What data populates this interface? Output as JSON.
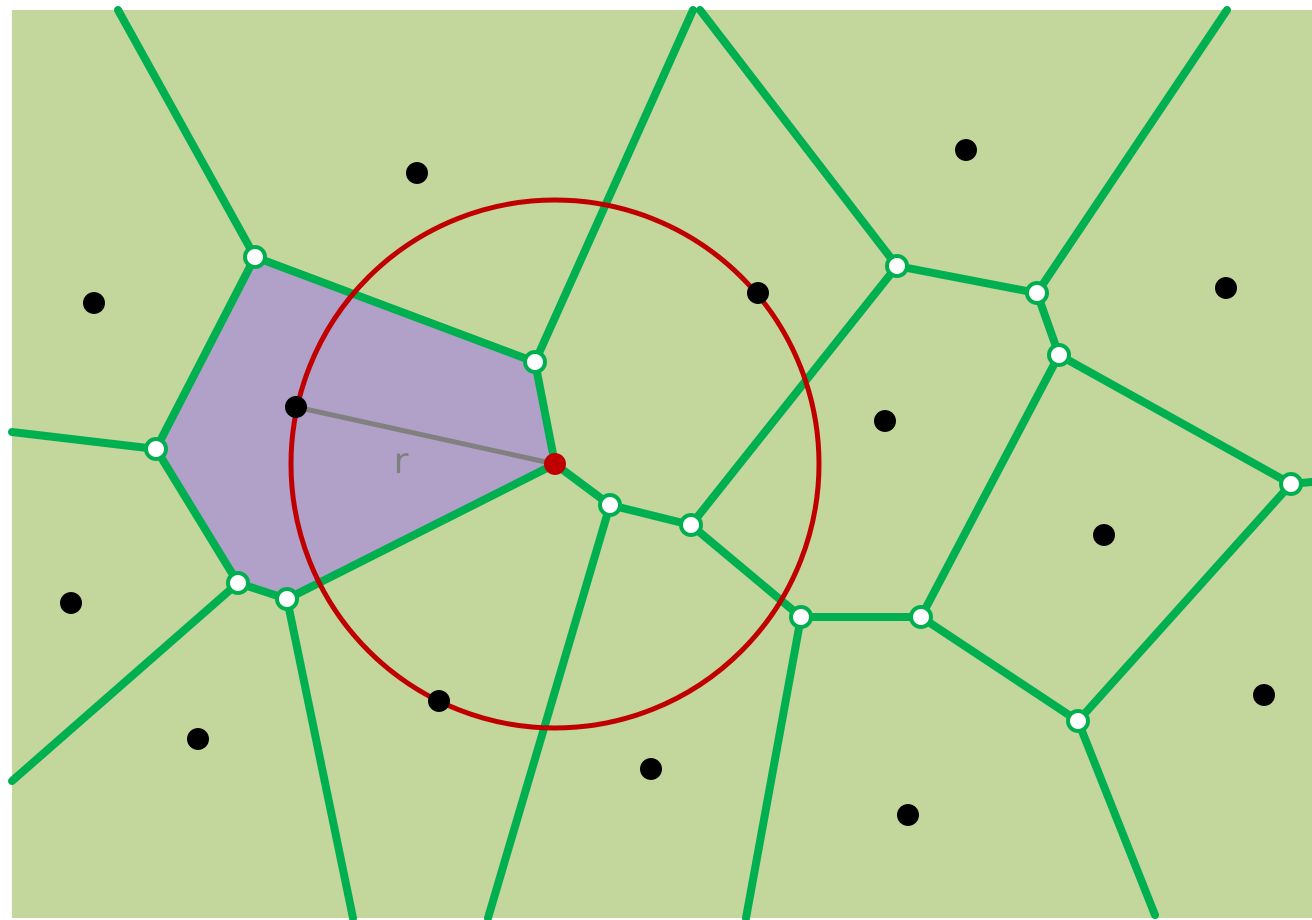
{
  "colors": {
    "background": "#c3d69b",
    "voronoi_edge": "#00b050",
    "highlighted_cell": "#b1a0c7",
    "circle": "#c00000",
    "radius_line": "#808080",
    "radius_label": "#808080",
    "site": "#000000",
    "vertex_fill": "#ffffff"
  },
  "labels": {
    "radius": "r"
  }
}
